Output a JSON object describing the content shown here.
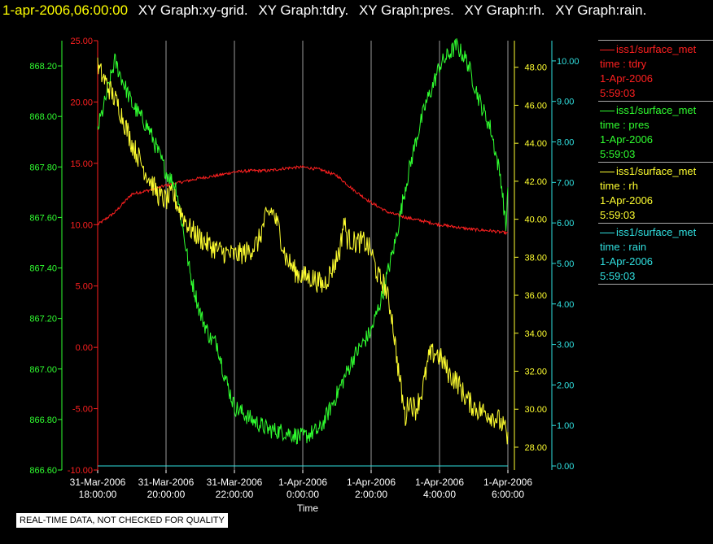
{
  "header": {
    "timestamp": "1-apr-2006,06:00:00",
    "graph_tabs": [
      "XY Graph:xy-grid.",
      "XY Graph:tdry.",
      "XY Graph:pres.",
      "XY Graph:rh.",
      "XY Graph:rain."
    ]
  },
  "legend": [
    {
      "source": "iss1/surface_met",
      "field": "time : tdry",
      "date": "1-Apr-2006",
      "time": "5:59:03",
      "color": "#ff2020"
    },
    {
      "source": "iss1/surface_met",
      "field": "time : pres",
      "date": "1-Apr-2006",
      "time": "5:59:03",
      "color": "#30ff30"
    },
    {
      "source": "iss1/surface_met",
      "field": "time : rh",
      "date": "1-Apr-2006",
      "time": "5:59:03",
      "color": "#ffff30"
    },
    {
      "source": "iss1/surface_met",
      "field": "time : rain",
      "date": "1-Apr-2006",
      "time": "5:59:03",
      "color": "#30e0e0"
    }
  ],
  "notice": "REAL-TIME DATA, NOT CHECKED FOR QUALITY",
  "chart_data": {
    "type": "line",
    "xlabel": "Time",
    "x_ticks": [
      {
        "date": "31-Mar-2006",
        "time": "18:00:00"
      },
      {
        "date": "31-Mar-2006",
        "time": "20:00:00"
      },
      {
        "date": "31-Mar-2006",
        "time": "22:00:00"
      },
      {
        "date": "1-Apr-2006",
        "time": "0:00:00"
      },
      {
        "date": "1-Apr-2006",
        "time": "2:00:00"
      },
      {
        "date": "1-Apr-2006",
        "time": "4:00:00"
      },
      {
        "date": "1-Apr-2006",
        "time": "6:00:00"
      }
    ],
    "xlim_hours": [
      -6.0,
      6.0
    ],
    "grid": true,
    "axes": {
      "pres": {
        "side": "left-outer",
        "color": "#30ff30",
        "min": 866.6,
        "max": 868.3,
        "ticks": [
          "866.60",
          "866.80",
          "867.00",
          "867.20",
          "867.40",
          "867.60",
          "867.80",
          "868.00",
          "868.20"
        ]
      },
      "tdry": {
        "side": "left-inner",
        "color": "#ff2020",
        "min": -10,
        "max": 25,
        "ticks": [
          "-10.00",
          "-5.00",
          "0.00",
          "5.00",
          "10.00",
          "15.00",
          "20.00",
          "25.00"
        ]
      },
      "rh": {
        "side": "right-inner",
        "color": "#ffff30",
        "min": 26.8,
        "max": 49.4,
        "ticks": [
          "28.00",
          "30.00",
          "32.00",
          "34.00",
          "36.00",
          "38.00",
          "40.00",
          "42.00",
          "44.00",
          "46.00",
          "48.00"
        ]
      },
      "rain": {
        "side": "right-outer",
        "color": "#30e0e0",
        "min": -0.1,
        "max": 10.5,
        "ticks": [
          "0.00",
          "1.00",
          "2.00",
          "3.00",
          "4.00",
          "5.00",
          "6.00",
          "7.00",
          "8.00",
          "9.00",
          "10.00"
        ]
      }
    },
    "series": [
      {
        "name": "tdry",
        "axis": "tdry",
        "noise": 0.12,
        "points": [
          [
            -6.0,
            10.0
          ],
          [
            -5.5,
            11.0
          ],
          [
            -5.0,
            12.5
          ],
          [
            -4.5,
            12.8
          ],
          [
            -4.0,
            13.2
          ],
          [
            -3.5,
            13.5
          ],
          [
            -3.0,
            13.8
          ],
          [
            -2.5,
            14.0
          ],
          [
            -2.0,
            14.3
          ],
          [
            -1.5,
            14.4
          ],
          [
            -1.0,
            14.4
          ],
          [
            -0.5,
            14.6
          ],
          [
            0.0,
            14.7
          ],
          [
            0.5,
            14.5
          ],
          [
            1.0,
            14.0
          ],
          [
            1.5,
            12.8
          ],
          [
            2.0,
            11.8
          ],
          [
            2.5,
            11.0
          ],
          [
            3.0,
            10.6
          ],
          [
            3.5,
            10.3
          ],
          [
            4.0,
            10.0
          ],
          [
            4.5,
            9.8
          ],
          [
            5.0,
            9.6
          ],
          [
            5.5,
            9.5
          ],
          [
            6.0,
            9.3
          ]
        ]
      },
      {
        "name": "pres",
        "axis": "pres",
        "noise": 0.035,
        "points": [
          [
            -6.0,
            867.95
          ],
          [
            -5.8,
            868.05
          ],
          [
            -5.5,
            868.22
          ],
          [
            -5.0,
            868.05
          ],
          [
            -4.5,
            867.95
          ],
          [
            -4.0,
            867.78
          ],
          [
            -3.7,
            867.72
          ],
          [
            -3.5,
            867.55
          ],
          [
            -3.3,
            867.38
          ],
          [
            -3.0,
            867.22
          ],
          [
            -2.7,
            867.12
          ],
          [
            -2.5,
            867.1
          ],
          [
            -2.3,
            866.98
          ],
          [
            -2.0,
            866.85
          ],
          [
            -1.5,
            866.8
          ],
          [
            -1.0,
            866.76
          ],
          [
            -0.5,
            866.75
          ],
          [
            0.0,
            866.73
          ],
          [
            0.5,
            866.76
          ],
          [
            1.0,
            866.9
          ],
          [
            1.5,
            867.05
          ],
          [
            2.0,
            867.15
          ],
          [
            2.3,
            867.28
          ],
          [
            2.7,
            867.5
          ],
          [
            3.0,
            867.72
          ],
          [
            3.3,
            867.9
          ],
          [
            3.6,
            868.05
          ],
          [
            3.8,
            868.12
          ],
          [
            4.0,
            868.2
          ],
          [
            4.3,
            868.25
          ],
          [
            4.5,
            868.28
          ],
          [
            4.8,
            868.22
          ],
          [
            5.2,
            868.05
          ],
          [
            5.5,
            867.95
          ],
          [
            5.8,
            867.75
          ],
          [
            5.95,
            867.55
          ],
          [
            6.0,
            867.75
          ]
        ]
      },
      {
        "name": "rh",
        "axis": "rh",
        "noise": 0.6,
        "points": [
          [
            -6.0,
            48.0
          ],
          [
            -5.7,
            47.0
          ],
          [
            -5.4,
            46.0
          ],
          [
            -5.0,
            44.0
          ],
          [
            -4.6,
            42.5
          ],
          [
            -4.2,
            41.2
          ],
          [
            -4.0,
            41.0
          ],
          [
            -3.8,
            41.3
          ],
          [
            -3.6,
            40.5
          ],
          [
            -3.3,
            39.5
          ],
          [
            -3.0,
            39.0
          ],
          [
            -2.7,
            38.6
          ],
          [
            -2.4,
            38.3
          ],
          [
            -2.0,
            38.1
          ],
          [
            -1.6,
            38.3
          ],
          [
            -1.3,
            38.8
          ],
          [
            -1.1,
            40.0
          ],
          [
            -0.9,
            40.5
          ],
          [
            -0.7,
            39.5
          ],
          [
            -0.5,
            38.0
          ],
          [
            -0.2,
            37.2
          ],
          [
            0.0,
            37.0
          ],
          [
            0.3,
            36.9
          ],
          [
            0.6,
            36.5
          ],
          [
            0.9,
            37.5
          ],
          [
            1.1,
            38.5
          ],
          [
            1.2,
            40.0
          ],
          [
            1.3,
            39.0
          ],
          [
            1.5,
            38.8
          ],
          [
            1.8,
            38.8
          ],
          [
            2.0,
            38.3
          ],
          [
            2.2,
            37.0
          ],
          [
            2.4,
            36.5
          ],
          [
            2.6,
            35.0
          ],
          [
            2.8,
            32.0
          ],
          [
            3.0,
            29.5
          ],
          [
            3.1,
            30.5
          ],
          [
            3.3,
            30.0
          ],
          [
            3.5,
            31.0
          ],
          [
            3.7,
            32.8
          ],
          [
            3.9,
            33.0
          ],
          [
            4.1,
            32.5
          ],
          [
            4.3,
            31.8
          ],
          [
            4.5,
            31.5
          ],
          [
            4.7,
            30.8
          ],
          [
            4.9,
            30.3
          ],
          [
            5.1,
            30.0
          ],
          [
            5.4,
            29.8
          ],
          [
            5.7,
            29.5
          ],
          [
            5.9,
            29.0
          ],
          [
            6.0,
            28.3
          ]
        ]
      },
      {
        "name": "rain",
        "axis": "rain",
        "noise": 0,
        "points": [
          [
            -6.0,
            0.0
          ],
          [
            6.0,
            0.0
          ]
        ]
      }
    ]
  }
}
